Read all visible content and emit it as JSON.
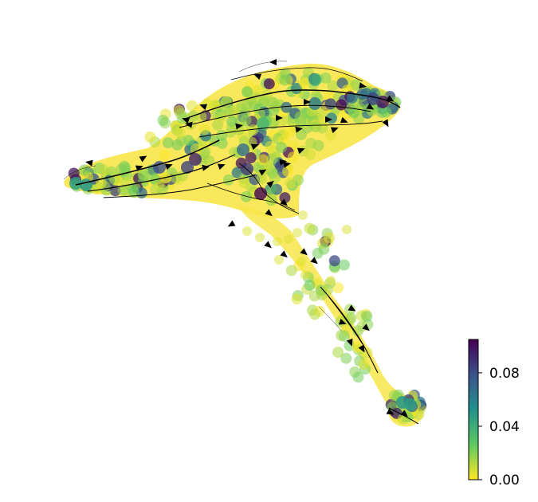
{
  "chart_data": {
    "type": "scatter",
    "style": "velocity stream embedding plot (points colored by value, black streamlines with arrowheads)",
    "title": "",
    "xlabel": "",
    "ylabel": "",
    "axes_visible": false,
    "grid": false,
    "legend": "none",
    "colorbar": {
      "colormap": "viridis",
      "reversed": true,
      "placement": "bottom-right",
      "vmin": 0.0,
      "vmax": 0.105,
      "ticks": [
        0.0,
        0.04,
        0.08
      ],
      "tick_labels": [
        "0.00",
        "0.04",
        "0.08"
      ],
      "colors_low_to_high": [
        "#fde725",
        "#5ec962",
        "#21918c",
        "#3b528b",
        "#440154"
      ]
    }
  }
}
